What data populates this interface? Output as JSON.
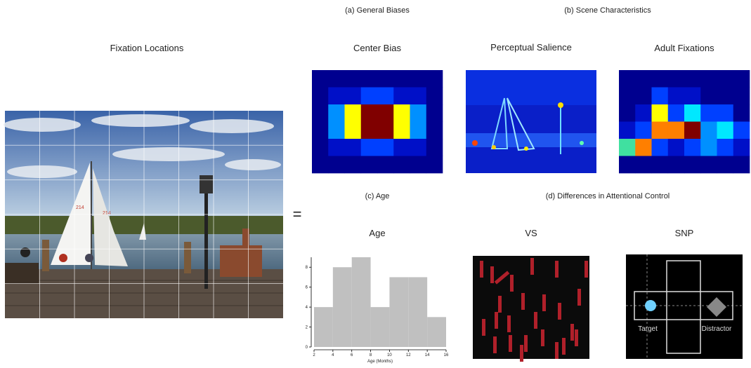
{
  "figure": {
    "panel_a": "(a) General Biases",
    "panel_b": "(b) Scene Characteristics",
    "panel_c": "(c) Age",
    "panel_d": "(d) Differences in Attentional Control",
    "photo_title": "Fixation Locations",
    "equals": "=",
    "sail_labels": [
      "214",
      "214"
    ],
    "center_bias": "Center Bias",
    "salience": "Perceptual Salience",
    "adult": "Adult Fixations",
    "vs": "VS",
    "snp": "SNP",
    "target": "Target",
    "distractor": "Distractor"
  },
  "chart_data": {
    "type": "histogram",
    "title": "Age",
    "x_label": "Age (Months)",
    "bins": [
      2,
      4,
      6,
      8,
      10,
      12,
      14,
      16
    ],
    "values": [
      4,
      8,
      9,
      4,
      7,
      7,
      3
    ],
    "color": "#c0c0c0",
    "xlim": [
      2,
      16
    ],
    "xticks": [
      2,
      4,
      6,
      8,
      10,
      12,
      14,
      16
    ],
    "ylim": [
      0,
      9
    ],
    "yticks": [
      0,
      2,
      4,
      6,
      8
    ]
  }
}
